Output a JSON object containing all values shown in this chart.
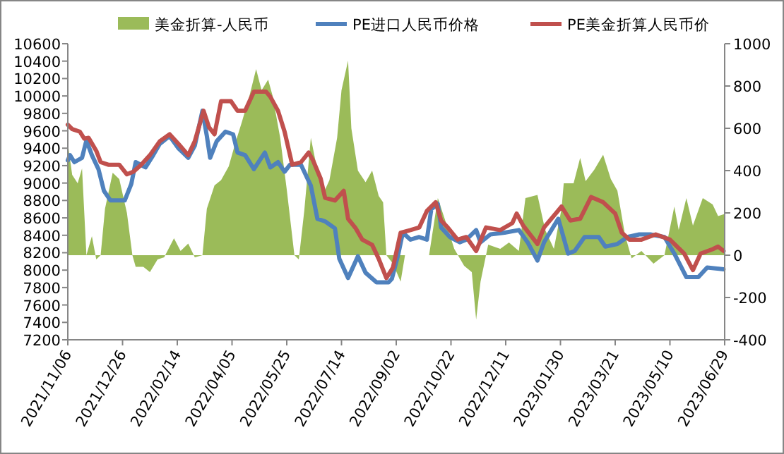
{
  "chart_data": {
    "type": "line",
    "legend": "top",
    "xlim": [
      "2021-11-06",
      "2023-06-29"
    ],
    "xticks": [
      {
        "value": "2021-11-06",
        "label": "2021/11/06"
      },
      {
        "value": "2021-12-26",
        "label": "2021/12/26"
      },
      {
        "value": "2022-02-14",
        "label": "2022/02/14"
      },
      {
        "value": "2022-04-05",
        "label": "2022/04/05"
      },
      {
        "value": "2022-05-25",
        "label": "2022/05/25"
      },
      {
        "value": "2022-07-14",
        "label": "2022/07/14"
      },
      {
        "value": "2022-09-02",
        "label": "2022/09/02"
      },
      {
        "value": "2022-10-22",
        "label": "2022/10/22"
      },
      {
        "value": "2022-12-11",
        "label": "2022/12/11"
      },
      {
        "value": "2023-01-30",
        "label": "2023/01/30"
      },
      {
        "value": "2023-03-21",
        "label": "2023/03/21"
      },
      {
        "value": "2023-05-10",
        "label": "2023/05/10"
      },
      {
        "value": "2023-06-29",
        "label": "2023/06/29"
      }
    ],
    "ylim": [
      7200,
      10600
    ],
    "yticks": [
      7200,
      7400,
      7600,
      7800,
      8000,
      8200,
      8400,
      8600,
      8800,
      9000,
      9200,
      9400,
      9600,
      9800,
      10000,
      10200,
      10400,
      10600
    ],
    "y2lim": [
      -400,
      1000
    ],
    "y2ticks": [
      -400,
      -200,
      0,
      200,
      400,
      600,
      800,
      1000
    ],
    "series": [
      {
        "name": "美金折算-人民币",
        "type": "area",
        "axis": "y2",
        "color": "#9bbb59",
        "x": [
          "2021-11-06",
          "2021-11-10",
          "2021-11-15",
          "2021-11-19",
          "2021-11-23",
          "2021-11-28",
          "2021-12-02",
          "2021-12-06",
          "2021-12-10",
          "2021-12-17",
          "2021-12-23",
          "2021-12-30",
          "2022-01-04",
          "2022-01-07",
          "2022-01-14",
          "2022-01-20",
          "2022-01-27",
          "2022-02-02",
          "2022-02-11",
          "2022-02-17",
          "2022-02-24",
          "2022-03-02",
          "2022-03-09",
          "2022-03-13",
          "2022-03-20",
          "2022-03-26",
          "2022-04-02",
          "2022-04-08",
          "2022-04-14",
          "2022-04-21",
          "2022-04-27",
          "2022-05-02",
          "2022-05-08",
          "2022-05-12",
          "2022-05-19",
          "2022-05-25",
          "2022-06-01",
          "2022-06-05",
          "2022-06-10",
          "2022-06-16",
          "2022-06-22",
          "2022-06-29",
          "2022-07-03",
          "2022-07-10",
          "2022-07-14",
          "2022-07-20",
          "2022-07-23",
          "2022-07-29",
          "2022-08-05",
          "2022-08-11",
          "2022-08-17",
          "2022-08-21",
          "2022-08-24",
          "2022-08-30",
          "2022-09-06",
          "2022-09-10",
          "2022-10-02",
          "2022-10-10",
          "2022-10-17",
          "2022-10-25",
          "2022-11-03",
          "2022-11-10",
          "2022-11-14",
          "2022-11-18",
          "2022-11-25",
          "2022-12-06",
          "2022-12-14",
          "2022-12-23",
          "2022-12-29",
          "2023-01-09",
          "2023-01-16",
          "2023-01-24",
          "2023-01-31",
          "2023-02-02",
          "2023-02-11",
          "2023-02-17",
          "2023-02-22",
          "2023-03-02",
          "2023-03-10",
          "2023-03-17",
          "2023-03-23",
          "2023-03-30",
          "2023-04-05",
          "2023-04-14",
          "2023-04-25",
          "2023-05-05",
          "2023-05-14",
          "2023-05-18",
          "2023-05-25",
          "2023-05-31",
          "2023-06-09",
          "2023-06-18",
          "2023-06-23",
          "2023-06-29"
        ],
        "values": [
          530,
          380,
          340,
          410,
          0,
          90,
          -20,
          0,
          220,
          390,
          360,
          200,
          0,
          -55,
          -55,
          -80,
          -20,
          -10,
          80,
          20,
          55,
          -10,
          0,
          220,
          330,
          355,
          420,
          530,
          630,
          755,
          880,
          780,
          830,
          755,
          555,
          310,
          0,
          -20,
          210,
          555,
          400,
          310,
          355,
          555,
          780,
          920,
          600,
          400,
          345,
          400,
          280,
          250,
          0,
          -40,
          -125,
          0,
          0,
          270,
          160,
          30,
          -50,
          -80,
          -305,
          -125,
          50,
          30,
          60,
          20,
          270,
          285,
          120,
          30,
          220,
          340,
          340,
          460,
          350,
          405,
          475,
          360,
          305,
          95,
          -15,
          20,
          -40,
          0,
          230,
          120,
          270,
          140,
          270,
          240,
          185,
          195
        ]
      },
      {
        "name": "PE进口人民币价格",
        "type": "line",
        "color": "#4f81bd",
        "x": [
          "2021-11-06",
          "2021-11-08",
          "2021-11-12",
          "2021-11-19",
          "2021-11-23",
          "2021-11-28",
          "2021-12-04",
          "2021-12-09",
          "2021-12-15",
          "2021-12-28",
          "2022-01-03",
          "2022-01-07",
          "2022-01-16",
          "2022-01-23",
          "2022-01-29",
          "2022-02-07",
          "2022-02-15",
          "2022-02-24",
          "2022-03-02",
          "2022-03-09",
          "2022-03-13",
          "2022-03-16",
          "2022-03-22",
          "2022-03-30",
          "2022-04-06",
          "2022-04-10",
          "2022-04-17",
          "2022-04-25",
          "2022-05-05",
          "2022-05-10",
          "2022-05-17",
          "2022-05-23",
          "2022-05-28",
          "2022-06-07",
          "2022-06-16",
          "2022-06-22",
          "2022-06-29",
          "2022-07-08",
          "2022-07-12",
          "2022-07-20",
          "2022-07-29",
          "2022-08-05",
          "2022-08-15",
          "2022-08-26",
          "2022-08-29",
          "2022-09-04",
          "2022-09-08",
          "2022-09-15",
          "2022-09-23",
          "2022-09-30",
          "2022-10-04",
          "2022-10-10",
          "2022-10-13",
          "2022-10-21",
          "2022-10-30",
          "2022-11-05",
          "2022-11-14",
          "2022-11-18",
          "2022-11-27",
          "2022-12-10",
          "2022-12-23",
          "2022-12-31",
          "2023-01-09",
          "2023-01-15",
          "2023-01-28",
          "2023-02-06",
          "2023-02-12",
          "2023-02-21",
          "2023-03-06",
          "2023-03-12",
          "2023-03-23",
          "2023-04-01",
          "2023-04-12",
          "2023-04-22",
          "2023-05-05",
          "2023-05-14",
          "2023-05-25",
          "2023-06-05",
          "2023-06-13",
          "2023-06-28"
        ],
        "values": [
          9260,
          9320,
          9240,
          9290,
          9490,
          9320,
          9160,
          8910,
          8800,
          8800,
          8990,
          9240,
          9180,
          9320,
          9450,
          9540,
          9400,
          9290,
          9430,
          9830,
          9540,
          9290,
          9480,
          9590,
          9560,
          9350,
          9320,
          9160,
          9350,
          9180,
          9240,
          9130,
          9210,
          9210,
          8970,
          8590,
          8560,
          8480,
          8130,
          7910,
          8160,
          7970,
          7860,
          7860,
          7900,
          8190,
          8430,
          8350,
          8380,
          8350,
          8700,
          8760,
          8490,
          8380,
          8320,
          8350,
          8460,
          8320,
          8410,
          8430,
          8460,
          8320,
          8110,
          8320,
          8590,
          8190,
          8220,
          8380,
          8380,
          8270,
          8300,
          8380,
          8410,
          8410,
          8380,
          8190,
          7920,
          7920,
          8030,
          8010
        ]
      },
      {
        "name": "PE美金折算人民币价",
        "type": "line",
        "color": "#c0504d",
        "x": [
          "2021-11-06",
          "2021-11-10",
          "2021-11-17",
          "2021-11-21",
          "2021-11-25",
          "2021-12-02",
          "2021-12-06",
          "2021-12-13",
          "2021-12-23",
          "2021-12-30",
          "2022-01-05",
          "2022-01-12",
          "2022-01-20",
          "2022-01-29",
          "2022-02-07",
          "2022-02-15",
          "2022-02-24",
          "2022-03-02",
          "2022-03-10",
          "2022-03-15",
          "2022-03-20",
          "2022-03-26",
          "2022-04-04",
          "2022-04-10",
          "2022-04-17",
          "2022-04-25",
          "2022-05-06",
          "2022-05-10",
          "2022-05-17",
          "2022-05-23",
          "2022-05-30",
          "2022-06-07",
          "2022-06-14",
          "2022-06-18",
          "2022-06-25",
          "2022-06-29",
          "2022-07-08",
          "2022-07-16",
          "2022-07-20",
          "2022-07-27",
          "2022-08-02",
          "2022-08-11",
          "2022-08-17",
          "2022-08-24",
          "2022-08-30",
          "2022-09-06",
          "2022-09-15",
          "2022-09-23",
          "2022-09-30",
          "2022-10-08",
          "2022-10-13",
          "2022-10-19",
          "2022-10-28",
          "2022-11-05",
          "2022-11-14",
          "2022-11-23",
          "2022-12-06",
          "2022-12-17",
          "2022-12-21",
          "2022-12-27",
          "2023-01-09",
          "2023-01-15",
          "2023-01-31",
          "2023-02-08",
          "2023-02-17",
          "2023-02-27",
          "2023-03-10",
          "2023-03-21",
          "2023-03-27",
          "2023-04-03",
          "2023-04-14",
          "2023-04-27",
          "2023-05-10",
          "2023-05-23",
          "2023-05-31",
          "2023-06-07",
          "2023-06-18",
          "2023-06-23",
          "2023-06-28"
        ],
        "values": [
          9670,
          9620,
          9590,
          9510,
          9520,
          9370,
          9240,
          9210,
          9210,
          9100,
          9130,
          9210,
          9320,
          9480,
          9560,
          9450,
          9320,
          9480,
          9830,
          9640,
          9560,
          9940,
          9940,
          9830,
          9830,
          10050,
          10050,
          9990,
          9830,
          9590,
          9210,
          9240,
          9350,
          9260,
          9050,
          8830,
          8800,
          8910,
          8590,
          8480,
          8350,
          8290,
          8130,
          7910,
          8030,
          8430,
          8460,
          8490,
          8680,
          8780,
          8570,
          8490,
          8350,
          8380,
          8220,
          8490,
          8460,
          8540,
          8650,
          8510,
          8300,
          8490,
          8730,
          8570,
          8590,
          8840,
          8780,
          8650,
          8430,
          8350,
          8350,
          8410,
          8350,
          8190,
          8000,
          8190,
          8240,
          8270,
          8220
        ]
      }
    ]
  }
}
